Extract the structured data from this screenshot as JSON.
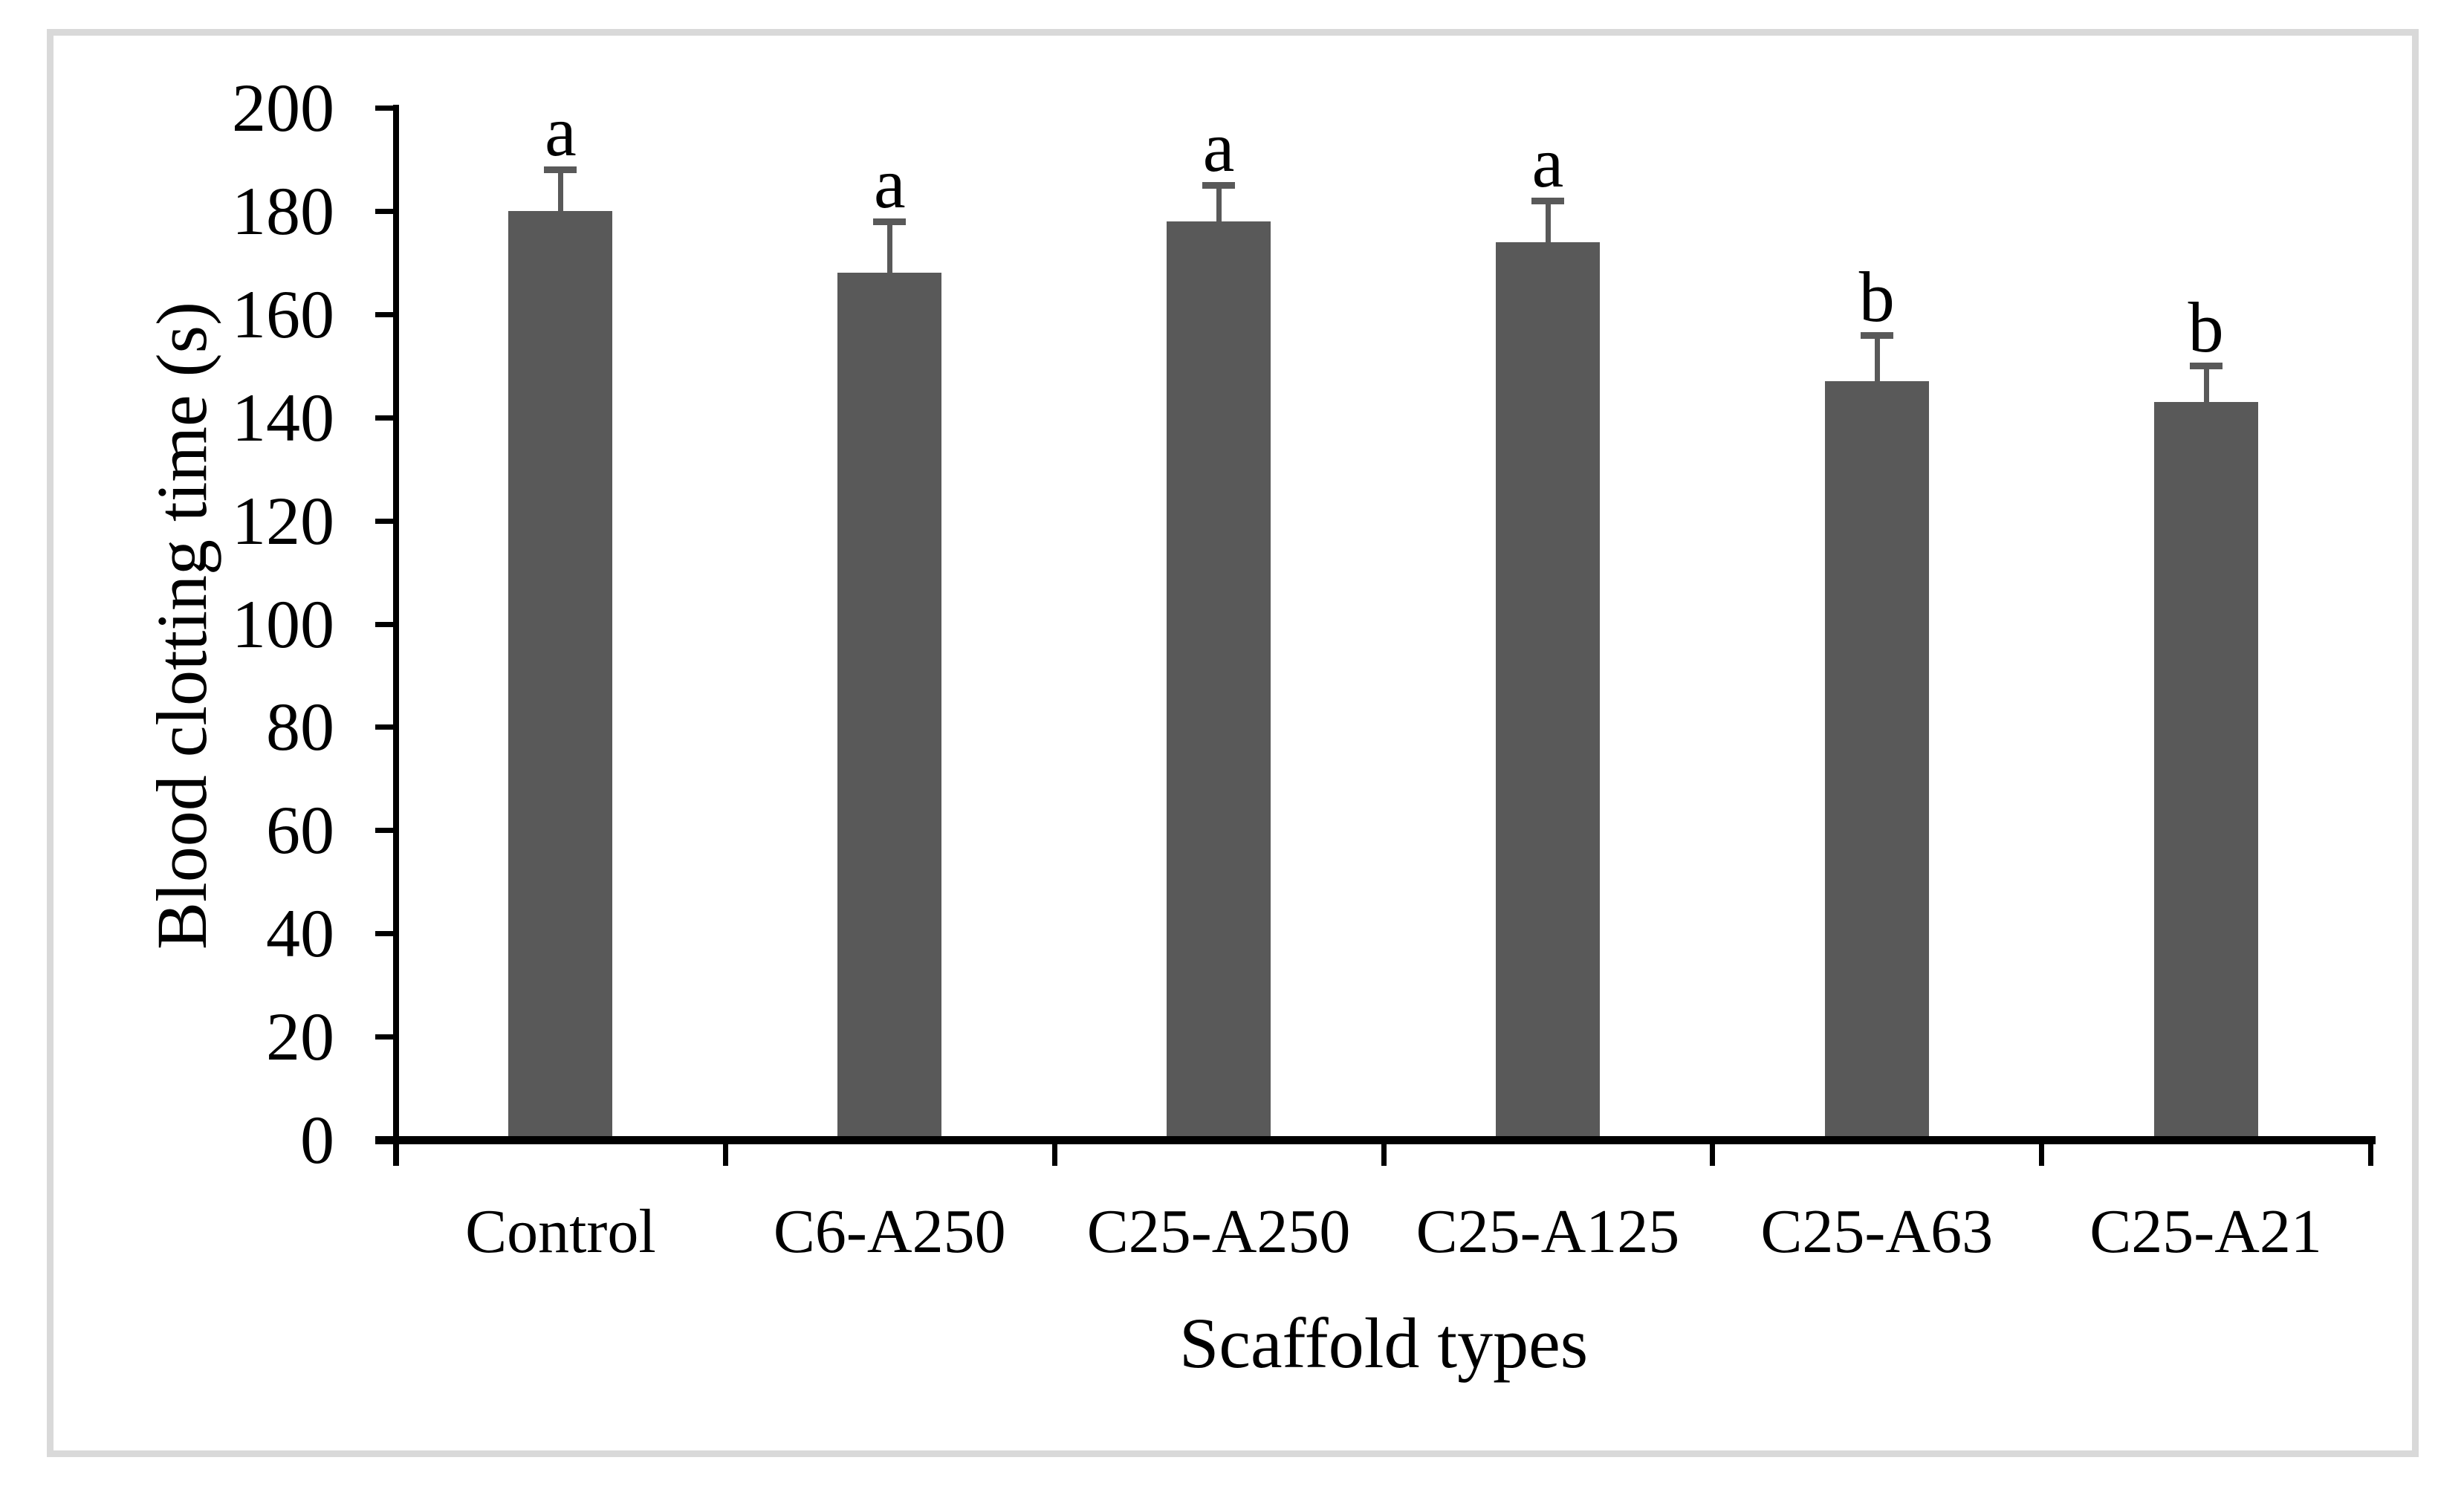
{
  "figure": {
    "background_color": "#ffffff",
    "frame_color": "#d9d9d9"
  },
  "chart_data": {
    "type": "bar",
    "title": "",
    "xlabel": "Scaffold types",
    "ylabel": "Blood clotting time (s)",
    "categories": [
      "Control",
      "C6-A250",
      "C25-A250",
      "C25-A125",
      "C25-A63",
      "C25-A21"
    ],
    "values": [
      180,
      168,
      178,
      174,
      147,
      143
    ],
    "error_bars_plus": [
      8,
      10,
      7,
      8,
      9,
      7
    ],
    "sig_letters": [
      "a",
      "a",
      "a",
      "a",
      "b",
      "b"
    ],
    "ylim": [
      0,
      200
    ],
    "ytick_step": 20,
    "yticks": [
      0,
      20,
      40,
      60,
      80,
      100,
      120,
      140,
      160,
      180,
      200
    ],
    "bar_color": "#595959",
    "error_bar_color": "#595959",
    "axis_color": "#000000",
    "grid": "off",
    "legend": "none"
  }
}
